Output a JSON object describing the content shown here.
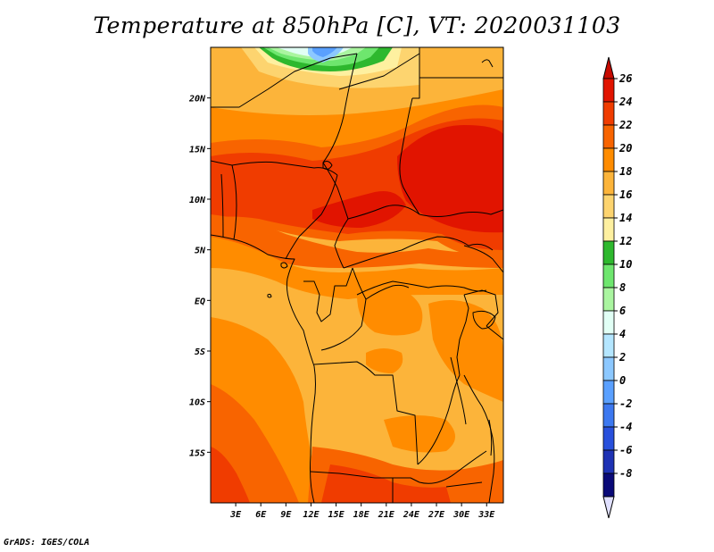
{
  "title": "Temperature at 850hPa [C], VT: 2020031103",
  "footer": "GrADS: IGES/COLA",
  "map": {
    "lon_range": [
      0,
      35
    ],
    "lat_range": [
      -20,
      25
    ],
    "lat_ticks": [
      {
        "value": 20,
        "label": "20N"
      },
      {
        "value": 15,
        "label": "15N"
      },
      {
        "value": 10,
        "label": "10N"
      },
      {
        "value": 5,
        "label": "5N"
      },
      {
        "value": 0,
        "label": "EQ"
      },
      {
        "value": -5,
        "label": "5S"
      },
      {
        "value": -10,
        "label": "10S"
      },
      {
        "value": -15,
        "label": "15S"
      }
    ],
    "lon_ticks": [
      {
        "value": 3,
        "label": "3E"
      },
      {
        "value": 6,
        "label": "6E"
      },
      {
        "value": 9,
        "label": "9E"
      },
      {
        "value": 12,
        "label": "12E"
      },
      {
        "value": 15,
        "label": "15E"
      },
      {
        "value": 18,
        "label": "18E"
      },
      {
        "value": 21,
        "label": "21E"
      },
      {
        "value": 24,
        "label": "24E"
      },
      {
        "value": 27,
        "label": "27E"
      },
      {
        "value": 30,
        "label": "30E"
      },
      {
        "value": 33,
        "label": "33E"
      }
    ]
  },
  "colorbar": {
    "levels": [
      "26",
      "24",
      "22",
      "20",
      "18",
      "16",
      "14",
      "12",
      "10",
      "8",
      "6",
      "4",
      "2",
      "0",
      "-2",
      "-4",
      "-6",
      "-8"
    ],
    "colors": [
      "#e11400",
      "#f03c00",
      "#f86400",
      "#ff8c00",
      "#fcb43a",
      "#fdd46f",
      "#fef0a0",
      "#2eb82e",
      "#6ee66e",
      "#aaf5a0",
      "#e1fff5",
      "#b4e6ff",
      "#8cc8ff",
      "#5aa0ff",
      "#3c78f0",
      "#2850dc",
      "#1e32b4",
      "#0a0a78"
    ],
    "over_color": "#c80a00",
    "under_color": "#e0e0ff"
  }
}
